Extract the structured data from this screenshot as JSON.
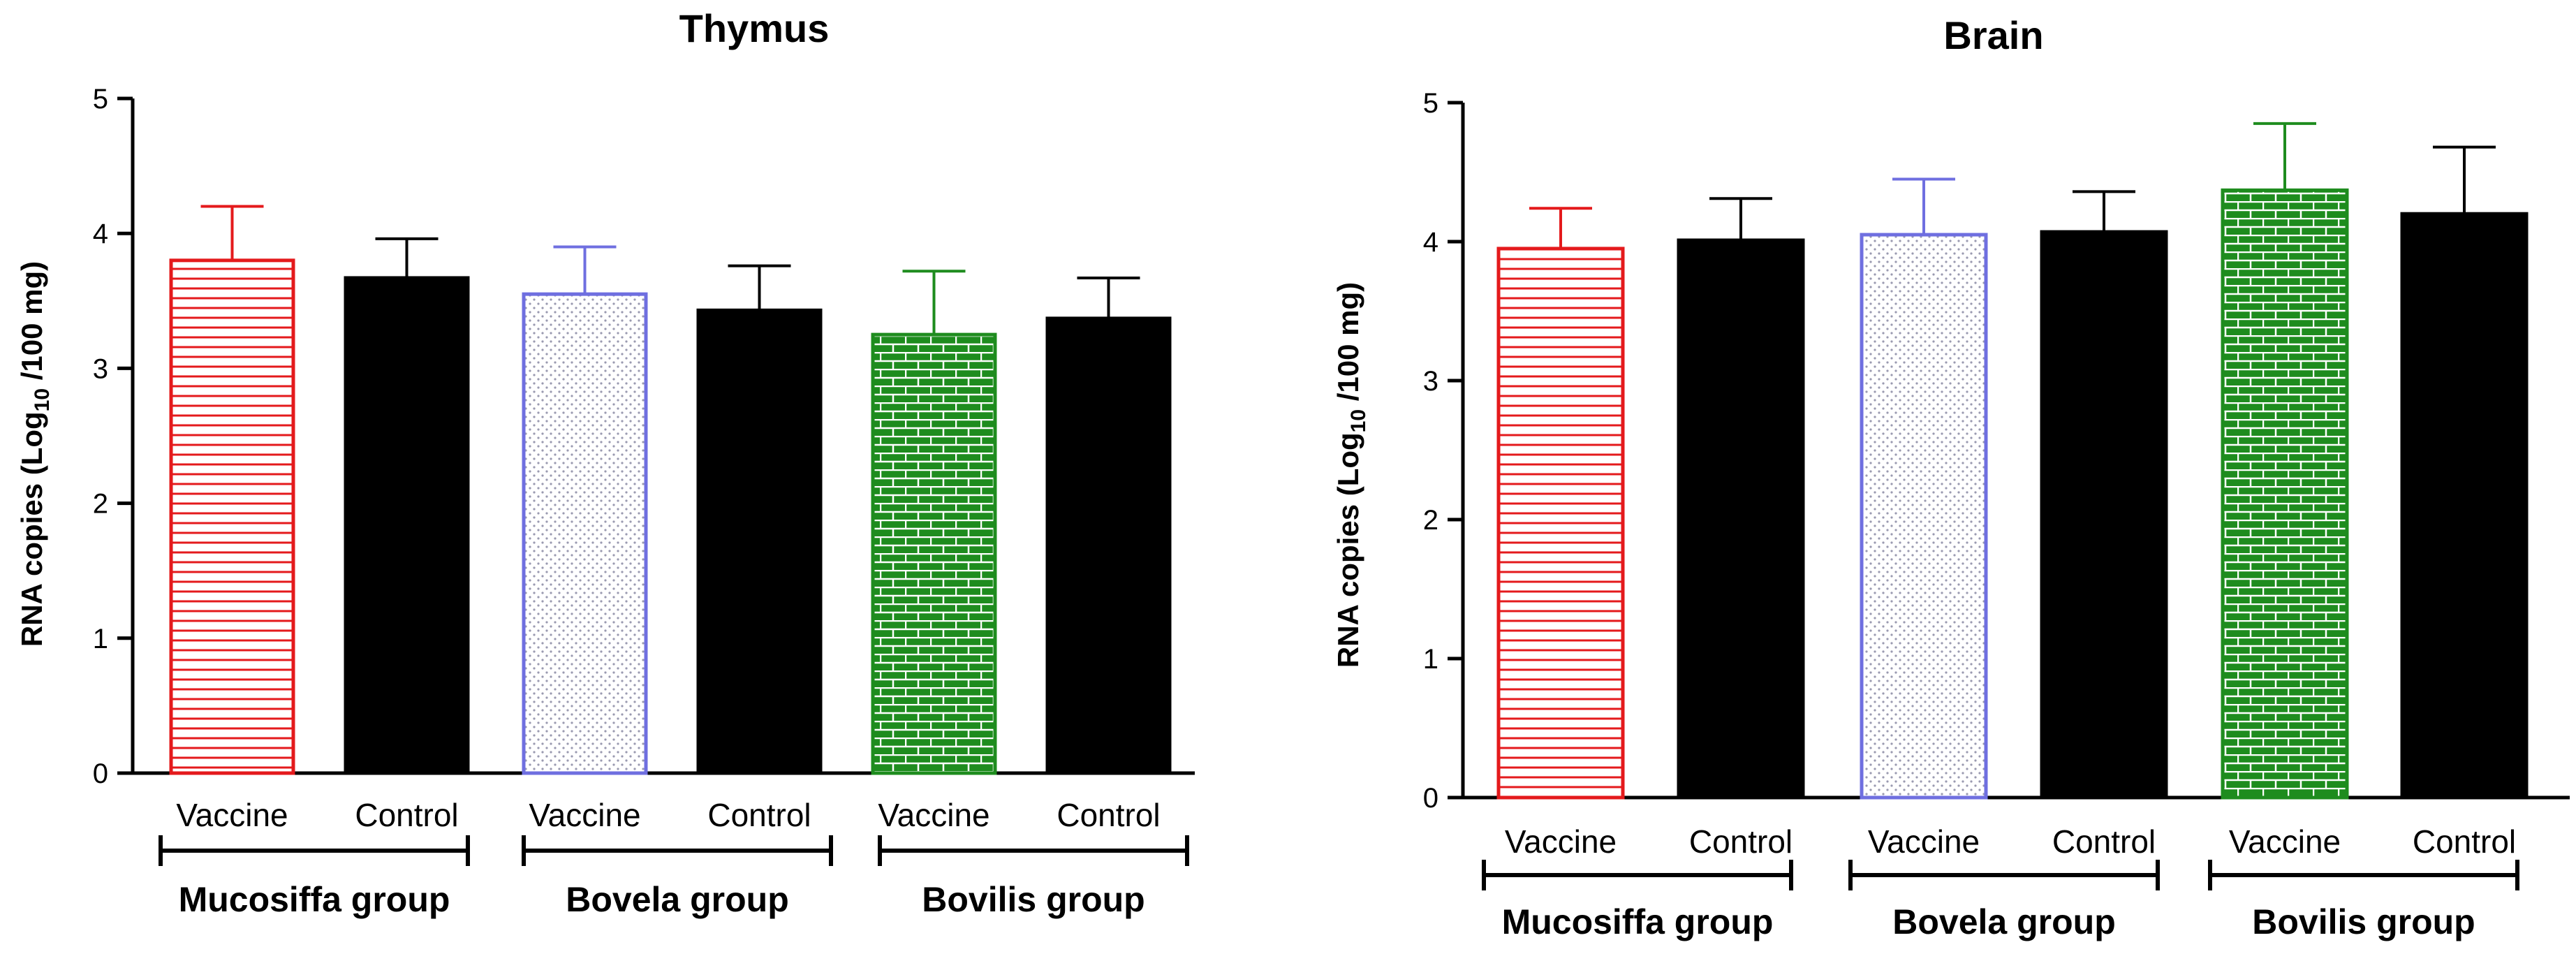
{
  "figure": {
    "charts": [
      {
        "title": "Thymus",
        "ylabel": "RNA copies (Log",
        "ylabel_sub": "10",
        "ylabel_suffix": " /100 mg)",
        "yticks": [
          "0",
          "1",
          "2",
          "3",
          "4",
          "5"
        ]
      },
      {
        "title": "Brain",
        "ylabel": "RNA copies (Log",
        "ylabel_sub": "10",
        "ylabel_suffix": " /100 mg)",
        "yticks": [
          "0",
          "1",
          "2",
          "3",
          "4",
          "5"
        ]
      }
    ],
    "colors": {
      "vaccine_red": "#e41a1c",
      "vaccine_blue": "#6f6fe0",
      "vaccine_green": "#1e8c1e",
      "control": "#000000"
    }
  },
  "chart_data": [
    {
      "type": "bar",
      "title": "Thymus",
      "xlabel": "",
      "ylabel": "RNA copies (Log10 /100 mg)",
      "ylim": [
        0,
        5
      ],
      "categories": [
        "Vaccine",
        "Control",
        "Vaccine",
        "Control",
        "Vaccine",
        "Control"
      ],
      "groups": [
        "Mucosiffa group",
        "Bovela group",
        "Bovilis group"
      ],
      "values": [
        3.8,
        3.67,
        3.55,
        3.43,
        3.25,
        3.37
      ],
      "errors": [
        0.4,
        0.29,
        0.35,
        0.33,
        0.47,
        0.3
      ],
      "styles": [
        "red-hlines",
        "black-solid",
        "blue-dots",
        "black-solid",
        "green-bricks",
        "black-solid"
      ]
    },
    {
      "type": "bar",
      "title": "Brain",
      "xlabel": "",
      "ylabel": "RNA copies (Log10 /100 mg)",
      "ylim": [
        0,
        5
      ],
      "categories": [
        "Vaccine",
        "Control",
        "Vaccine",
        "Control",
        "Vaccine",
        "Control"
      ],
      "groups": [
        "Mucosiffa group",
        "Bovela group",
        "Bovilis group"
      ],
      "values": [
        3.95,
        4.01,
        4.05,
        4.07,
        4.37,
        4.2
      ],
      "errors": [
        0.29,
        0.3,
        0.4,
        0.29,
        0.48,
        0.48
      ],
      "styles": [
        "red-hlines",
        "black-solid",
        "blue-dots",
        "black-solid",
        "green-bricks",
        "black-solid"
      ]
    }
  ]
}
